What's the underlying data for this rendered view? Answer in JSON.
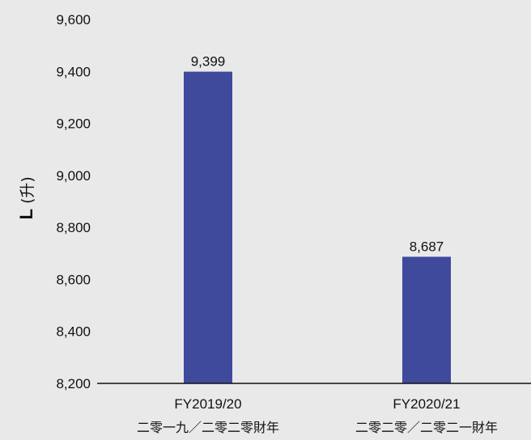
{
  "chart_data": {
    "type": "bar",
    "categories": [
      "FY2019/20",
      "FY2020/21"
    ],
    "categories_zh": [
      "二零一九／二零二零財年",
      "二零二零／二零二一財年"
    ],
    "values": [
      9399,
      8687
    ],
    "value_labels": [
      "9,399",
      "8,687"
    ],
    "ylabel": "L",
    "ylabel_zh": "(升)",
    "ylim": [
      8200,
      9600
    ],
    "yticks": [
      8200,
      8400,
      8600,
      8800,
      9000,
      9200,
      9400,
      9600
    ],
    "ytick_labels": [
      "8,200",
      "8,400",
      "8,600",
      "8,800",
      "9,000",
      "9,200",
      "9,400",
      "9,600"
    ],
    "grid": false,
    "bar_color": "#3f4a9c",
    "background": "#e9e9ea"
  }
}
